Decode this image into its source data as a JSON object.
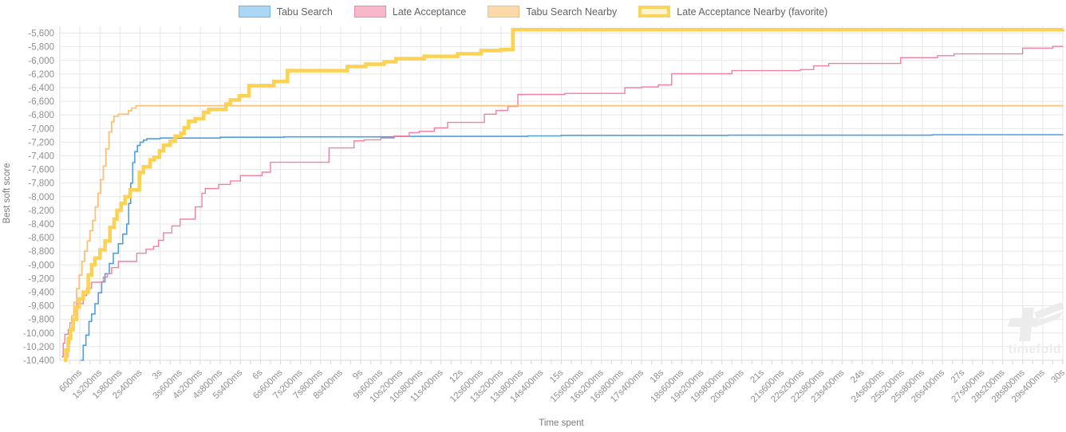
{
  "legend": {
    "items": [
      {
        "label": "Tabu Search",
        "fill": "#abd7f5",
        "border": "#6db4ee",
        "border_width": 1
      },
      {
        "label": "Late Acceptance",
        "fill": "#f9b8c9",
        "border": "#f287a6",
        "border_width": 1
      },
      {
        "label": "Tabu Search Nearby",
        "fill": "#fcd9a8",
        "border": "#fbbd74",
        "border_width": 1
      },
      {
        "label": "Late Acceptance Nearby (favorite)",
        "fill": "#fdf3d2",
        "border": "#fbd45c",
        "border_width": 4
      }
    ]
  },
  "watermark": {
    "text": "timefold"
  },
  "colors": {
    "grid": "#e7e7e7",
    "axis": "#d9d9d9",
    "tick_text": "#8f8f8f",
    "axis_title": "#7a7a7a",
    "watermark": "#ececec"
  },
  "chart_data": {
    "type": "line",
    "stepped": true,
    "title": "",
    "xlabel": "Time spent",
    "ylabel": "Best soft score",
    "xlim": [
      0,
      30
    ],
    "ylim": [
      -10400,
      -5500
    ],
    "x_tick_interval": 0.6,
    "x_minor_tick_interval": 0.3,
    "grid": true,
    "legend_position": "top",
    "x_tick_labels": [
      "600ms",
      "1s200ms",
      "1s800ms",
      "2s400ms",
      "3s",
      "3s600ms",
      "4s200ms",
      "4s800ms",
      "5s400ms",
      "6s",
      "6s600ms",
      "7s200ms",
      "7s800ms",
      "8s400ms",
      "9s",
      "9s600ms",
      "10s200ms",
      "10s800ms",
      "11s400ms",
      "12s",
      "12s600ms",
      "13s200ms",
      "13s800ms",
      "14s400ms",
      "15s",
      "15s600ms",
      "16s200ms",
      "16s800ms",
      "17s400ms",
      "18s",
      "18s600ms",
      "19s200ms",
      "19s800ms",
      "20s400ms",
      "21s",
      "21s600ms",
      "22s200ms",
      "22s800ms",
      "23s400ms",
      "24s",
      "24s600ms",
      "25s200ms",
      "25s800ms",
      "26s400ms",
      "27s",
      "27s600ms",
      "28s200ms",
      "28s800ms",
      "29s400ms",
      "30s"
    ],
    "y_ticks": [
      -5600,
      -5800,
      -6000,
      -6200,
      -6400,
      -6600,
      -6800,
      -7000,
      -7200,
      -7400,
      -7600,
      -7800,
      -8000,
      -8200,
      -8400,
      -8600,
      -8800,
      -9000,
      -9200,
      -9400,
      -9600,
      -9800,
      -10000,
      -10200,
      -10400
    ],
    "y_tick_labels": [
      "-5,600",
      "-5,800",
      "-6,000",
      "-6,200",
      "-6,400",
      "-6,600",
      "-6,800",
      "-7,000",
      "-7,200",
      "-7,400",
      "-7,600",
      "-7,800",
      "-8,000",
      "-8,200",
      "-8,400",
      "-8,600",
      "-8,800",
      "-9,000",
      "-9,200",
      "-9,400",
      "-9,600",
      "-9,800",
      "-10,000",
      "-10,200",
      "-10,400"
    ],
    "series": [
      {
        "name": "Tabu Search",
        "color": "#4f9fe0",
        "width": 1.6,
        "points": [
          [
            0.63,
            -10400
          ],
          [
            0.7,
            -10180
          ],
          [
            0.78,
            -10030
          ],
          [
            0.87,
            -9830
          ],
          [
            0.95,
            -9720
          ],
          [
            1.05,
            -9570
          ],
          [
            1.15,
            -9410
          ],
          [
            1.25,
            -9250
          ],
          [
            1.35,
            -9130
          ],
          [
            1.48,
            -8980
          ],
          [
            1.6,
            -8830
          ],
          [
            1.75,
            -8690
          ],
          [
            1.88,
            -8550
          ],
          [
            2.0,
            -8400
          ],
          [
            2.06,
            -8100
          ],
          [
            2.12,
            -7800
          ],
          [
            2.18,
            -7500
          ],
          [
            2.24,
            -7340
          ],
          [
            2.32,
            -7250
          ],
          [
            2.4,
            -7200
          ],
          [
            2.5,
            -7170
          ],
          [
            2.6,
            -7150
          ],
          [
            3.0,
            -7140
          ],
          [
            4.8,
            -7128
          ],
          [
            6.7,
            -7122
          ],
          [
            10.0,
            -7115
          ],
          [
            14.0,
            -7108
          ],
          [
            15.0,
            -7100
          ],
          [
            20.0,
            -7097
          ],
          [
            26.1,
            -7090
          ],
          [
            30.0,
            -7088
          ]
        ]
      },
      {
        "name": "Late Acceptance",
        "color": "#f2809f",
        "width": 1.4,
        "points": [
          [
            0.05,
            -10350
          ],
          [
            0.1,
            -10150
          ],
          [
            0.15,
            -10020
          ],
          [
            0.25,
            -9950
          ],
          [
            0.3,
            -9850
          ],
          [
            0.35,
            -9750
          ],
          [
            0.42,
            -9680
          ],
          [
            0.5,
            -9570
          ],
          [
            0.7,
            -9450
          ],
          [
            0.8,
            -9340
          ],
          [
            0.95,
            -9255
          ],
          [
            1.3,
            -9180
          ],
          [
            1.42,
            -9130
          ],
          [
            1.55,
            -9040
          ],
          [
            1.75,
            -8950
          ],
          [
            2.3,
            -8830
          ],
          [
            2.58,
            -8770
          ],
          [
            2.8,
            -8730
          ],
          [
            2.95,
            -8640
          ],
          [
            3.1,
            -8530
          ],
          [
            3.35,
            -8430
          ],
          [
            3.6,
            -8330
          ],
          [
            4.05,
            -8150
          ],
          [
            4.25,
            -7950
          ],
          [
            4.35,
            -7880
          ],
          [
            4.75,
            -7820
          ],
          [
            5.1,
            -7770
          ],
          [
            5.4,
            -7690
          ],
          [
            6.05,
            -7640
          ],
          [
            6.3,
            -7495
          ],
          [
            8.05,
            -7285
          ],
          [
            8.8,
            -7180
          ],
          [
            9.1,
            -7165
          ],
          [
            9.6,
            -7140
          ],
          [
            10.0,
            -7110
          ],
          [
            10.45,
            -7060
          ],
          [
            10.75,
            -7040
          ],
          [
            11.2,
            -6990
          ],
          [
            11.6,
            -6910
          ],
          [
            12.7,
            -6790
          ],
          [
            13.05,
            -6735
          ],
          [
            13.4,
            -6675
          ],
          [
            13.7,
            -6500
          ],
          [
            15.1,
            -6485
          ],
          [
            16.9,
            -6400
          ],
          [
            17.4,
            -6390
          ],
          [
            17.9,
            -6360
          ],
          [
            18.3,
            -6195
          ],
          [
            20.1,
            -6150
          ],
          [
            22.15,
            -6135
          ],
          [
            22.55,
            -6080
          ],
          [
            23.0,
            -6045
          ],
          [
            25.15,
            -5960
          ],
          [
            26.25,
            -5930
          ],
          [
            26.75,
            -5905
          ],
          [
            28.8,
            -5820
          ],
          [
            29.7,
            -5795
          ],
          [
            30.0,
            -5790
          ]
        ]
      },
      {
        "name": "Tabu Search Nearby",
        "color": "#fbc178",
        "width": 1.8,
        "points": [
          [
            0.2,
            -10350
          ],
          [
            0.25,
            -10150
          ],
          [
            0.3,
            -9950
          ],
          [
            0.36,
            -9750
          ],
          [
            0.42,
            -9550
          ],
          [
            0.5,
            -9350
          ],
          [
            0.58,
            -9150
          ],
          [
            0.66,
            -8950
          ],
          [
            0.74,
            -8800
          ],
          [
            0.82,
            -8650
          ],
          [
            0.9,
            -8500
          ],
          [
            0.98,
            -8350
          ],
          [
            1.06,
            -8150
          ],
          [
            1.14,
            -7950
          ],
          [
            1.22,
            -7750
          ],
          [
            1.3,
            -7550
          ],
          [
            1.38,
            -7300
          ],
          [
            1.47,
            -7050
          ],
          [
            1.55,
            -6900
          ],
          [
            1.62,
            -6820
          ],
          [
            1.75,
            -6790
          ],
          [
            2.05,
            -6740
          ],
          [
            2.15,
            -6700
          ],
          [
            2.28,
            -6665
          ],
          [
            30.0,
            -6655
          ]
        ]
      },
      {
        "name": "Late Acceptance Nearby (favorite)",
        "color": "#fbd254",
        "width": 4.5,
        "points": [
          [
            0.12,
            -10400
          ],
          [
            0.18,
            -10250
          ],
          [
            0.25,
            -10080
          ],
          [
            0.32,
            -9950
          ],
          [
            0.4,
            -9800
          ],
          [
            0.5,
            -9620
          ],
          [
            0.58,
            -9500
          ],
          [
            0.7,
            -9400
          ],
          [
            0.85,
            -9150
          ],
          [
            0.95,
            -9000
          ],
          [
            1.05,
            -8900
          ],
          [
            1.2,
            -8780
          ],
          [
            1.35,
            -8650
          ],
          [
            1.5,
            -8450
          ],
          [
            1.62,
            -8330
          ],
          [
            1.71,
            -8200
          ],
          [
            1.83,
            -8100
          ],
          [
            1.95,
            -8000
          ],
          [
            2.1,
            -7900
          ],
          [
            2.38,
            -7645
          ],
          [
            2.5,
            -7560
          ],
          [
            2.7,
            -7460
          ],
          [
            2.82,
            -7420
          ],
          [
            2.98,
            -7325
          ],
          [
            3.1,
            -7245
          ],
          [
            3.3,
            -7185
          ],
          [
            3.45,
            -7110
          ],
          [
            3.62,
            -7070
          ],
          [
            3.72,
            -6990
          ],
          [
            3.85,
            -6895
          ],
          [
            4.05,
            -6855
          ],
          [
            4.3,
            -6760
          ],
          [
            4.45,
            -6720
          ],
          [
            4.97,
            -6640
          ],
          [
            5.1,
            -6580
          ],
          [
            5.37,
            -6520
          ],
          [
            5.66,
            -6370
          ],
          [
            6.4,
            -6310
          ],
          [
            6.81,
            -6150
          ],
          [
            8.6,
            -6090
          ],
          [
            9.15,
            -6055
          ],
          [
            9.7,
            -6020
          ],
          [
            10.05,
            -5975
          ],
          [
            10.9,
            -5940
          ],
          [
            11.9,
            -5903
          ],
          [
            12.6,
            -5855
          ],
          [
            13.2,
            -5842
          ],
          [
            13.55,
            -5550
          ],
          [
            30.0,
            -5542
          ]
        ]
      }
    ]
  }
}
